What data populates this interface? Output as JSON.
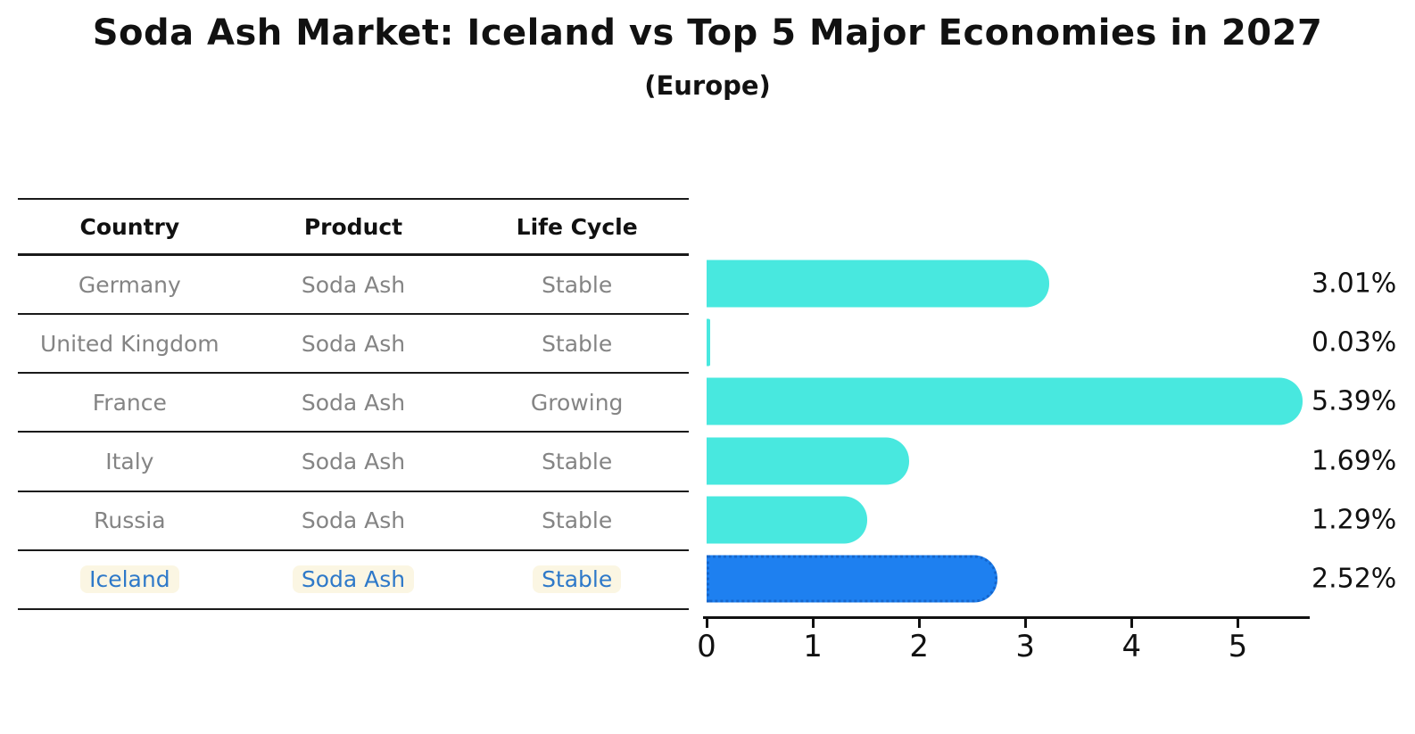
{
  "title": "Soda Ash Market: Iceland vs Top 5 Major Economies in 2027",
  "subtitle": "(Europe)",
  "table": {
    "headers": [
      "Country",
      "Product",
      "Life Cycle"
    ],
    "rows": [
      {
        "country": "Germany",
        "product": "Soda Ash",
        "life_cycle": "Stable",
        "highlight": false
      },
      {
        "country": "United Kingdom",
        "product": "Soda Ash",
        "life_cycle": "Stable",
        "highlight": false
      },
      {
        "country": "France",
        "product": "Soda Ash",
        "life_cycle": "Growing",
        "highlight": false
      },
      {
        "country": "Italy",
        "product": "Soda Ash",
        "life_cycle": "Stable",
        "highlight": false
      },
      {
        "country": "Russia",
        "product": "Soda Ash",
        "life_cycle": "Stable",
        "highlight": false
      },
      {
        "country": "Iceland",
        "product": "Soda Ash",
        "life_cycle": "Stable",
        "highlight": true
      }
    ]
  },
  "chart_data": {
    "type": "bar",
    "orientation": "horizontal",
    "title": "Soda Ash Market: Iceland vs Top 5 Major Economies in 2027",
    "subtitle": "(Europe)",
    "categories": [
      "Germany",
      "United Kingdom",
      "France",
      "Italy",
      "Russia",
      "Iceland"
    ],
    "values": [
      3.01,
      0.03,
      5.39,
      1.69,
      1.29,
      2.52
    ],
    "value_labels": [
      "3.01%",
      "0.03%",
      "5.39%",
      "1.69%",
      "1.29%",
      "2.52%"
    ],
    "unit": "%",
    "x_ticks": [
      "0",
      "1",
      "2",
      "3",
      "4",
      "5"
    ],
    "x_tick_values": [
      0,
      1,
      2,
      3,
      4,
      5
    ],
    "xlim": [
      0,
      5.66
    ],
    "grid": false,
    "legend": false,
    "highlight_index": 5,
    "bar_color": "#48e8df",
    "highlight_bar_color": "#1e80f0",
    "highlight_bar_border_color": "#1566cc"
  },
  "colors": {
    "background": "#ffffff",
    "title_text": "#111111",
    "table_header_text": "#111111",
    "table_cell_text": "#848484",
    "highlight_text": "#2e79c9",
    "highlight_text_bg": "#fbf6e3",
    "table_line": "#1a1a1a",
    "axis": "#111111"
  }
}
